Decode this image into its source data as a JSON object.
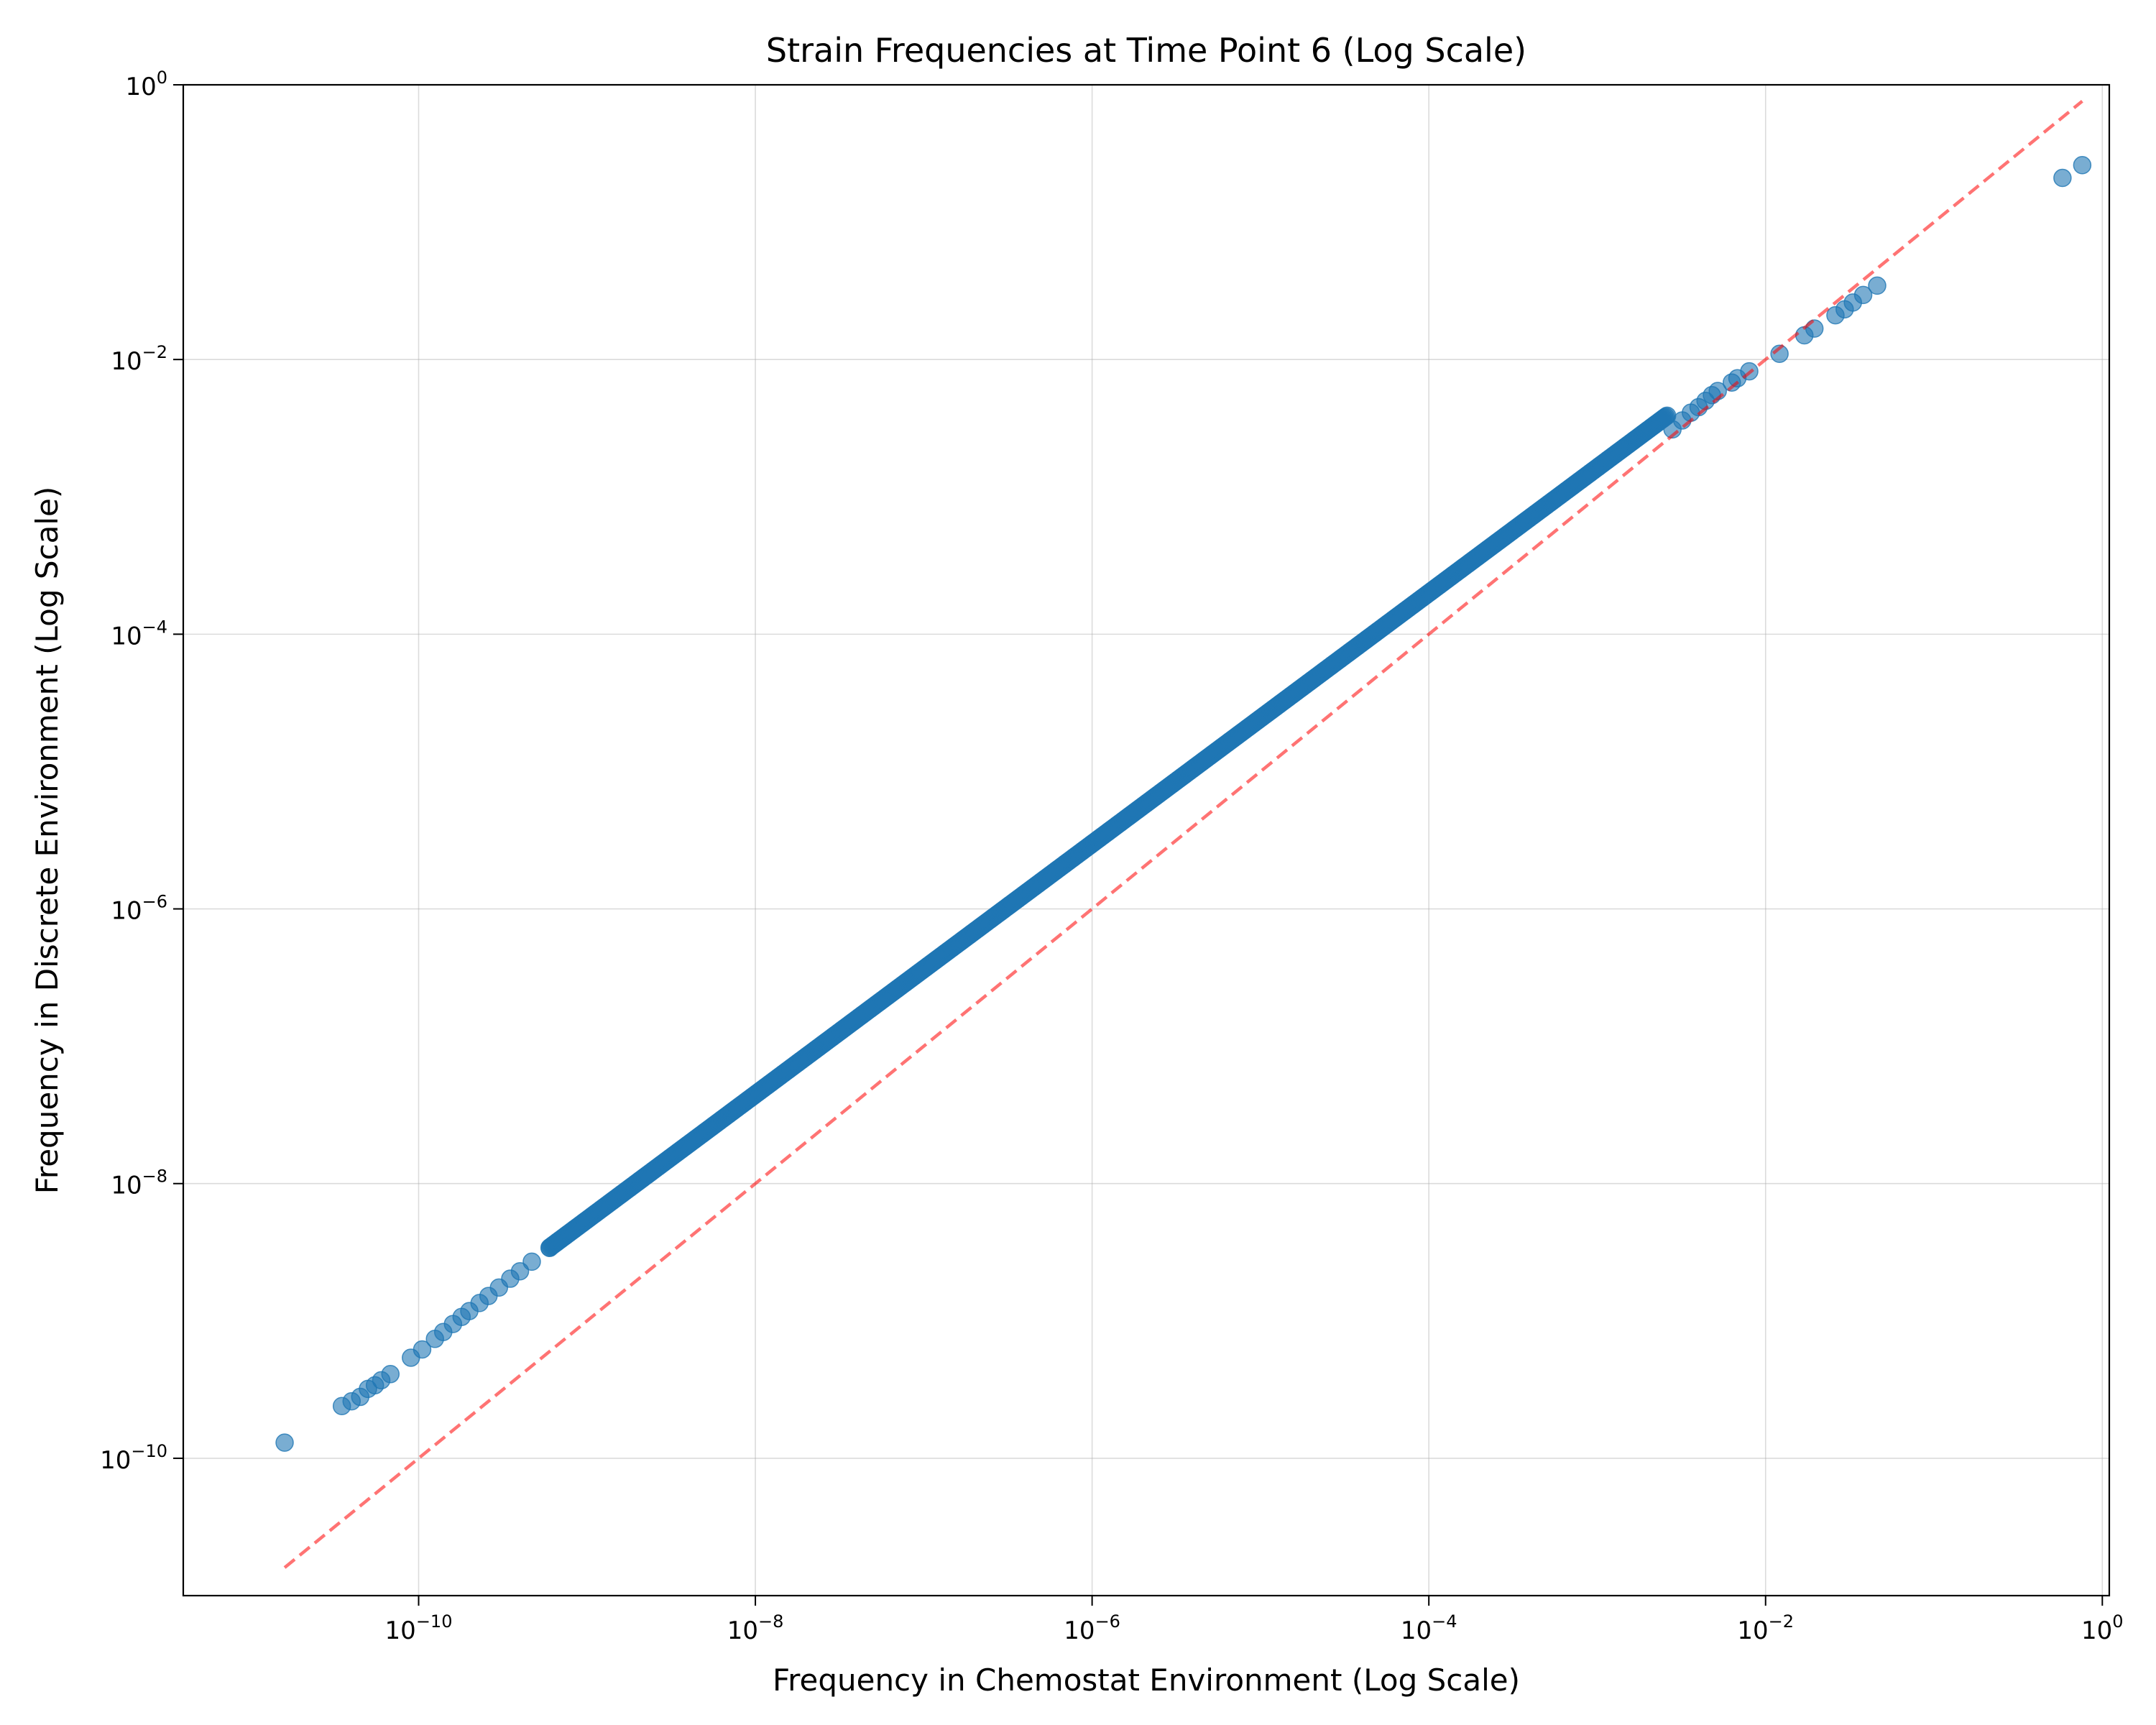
{
  "chart_data": {
    "type": "scatter",
    "title": "Strain Frequencies at Time Point 6 (Log Scale)",
    "xlabel": "Frequency in Chemostat Environment (Log Scale)",
    "ylabel": "Frequency in Discrete Environment (Log Scale)",
    "xscale": "log",
    "yscale": "log",
    "xlim": [
      4e-12,
      1.1
    ],
    "ylim": [
      1e-11,
      1.0
    ],
    "x_ticks": [
      {
        "value": 1e-10,
        "base": "10",
        "exp": "−10"
      },
      {
        "value": 1e-08,
        "base": "10",
        "exp": "−8"
      },
      {
        "value": 1e-06,
        "base": "10",
        "exp": "−6"
      },
      {
        "value": 0.0001,
        "base": "10",
        "exp": "−4"
      },
      {
        "value": 0.01,
        "base": "10",
        "exp": "−2"
      },
      {
        "value": 1,
        "base": "10",
        "exp": "0"
      }
    ],
    "y_ticks": [
      {
        "value": 1e-10,
        "base": "10",
        "exp": "−10"
      },
      {
        "value": 1e-08,
        "base": "10",
        "exp": "−8"
      },
      {
        "value": 1e-06,
        "base": "10",
        "exp": "−6"
      },
      {
        "value": 0.0001,
        "base": "10",
        "exp": "−4"
      },
      {
        "value": 0.01,
        "base": "10",
        "exp": "−2"
      },
      {
        "value": 1,
        "base": "10",
        "exp": "0"
      }
    ],
    "grid": true,
    "series": [
      {
        "type": "scatter",
        "color": "#1f77b4",
        "opacity": 0.6,
        "points": [
          [
            1.6e-11,
            1.3e-10
          ],
          [
            3.5e-11,
            2.4e-10
          ],
          [
            4e-11,
            2.6e-10
          ],
          [
            4.5e-11,
            2.8e-10
          ],
          [
            5e-11,
            3.2e-10
          ],
          [
            5.5e-11,
            3.4e-10
          ],
          [
            6e-11,
            3.7e-10
          ],
          [
            6.8e-11,
            4.1e-10
          ],
          [
            9e-11,
            5.4e-10
          ],
          [
            1.05e-10,
            6.2e-10
          ],
          [
            1.25e-10,
            7.4e-10
          ],
          [
            1.4e-10,
            8.3e-10
          ],
          [
            1.6e-10,
            9.5e-10
          ],
          [
            1.8e-10,
            1.07e-09
          ],
          [
            2e-10,
            1.18e-09
          ],
          [
            2.3e-10,
            1.35e-09
          ],
          [
            2.6e-10,
            1.52e-09
          ],
          [
            3e-10,
            1.75e-09
          ],
          [
            3.5e-10,
            2.03e-09
          ],
          [
            4e-10,
            2.3e-09
          ],
          [
            4.7e-10,
            2.7e-09
          ],
          [
            6e-10,
            3.4e-09
          ]
        ]
      },
      {
        "type": "dense-band",
        "color": "#1f77b4",
        "opacity": 0.6,
        "x_start": 6e-10,
        "x_end": 0.0026,
        "ratio": 5.7,
        "ratio_end": 1.5
      },
      {
        "type": "scatter",
        "color": "#1f77b4",
        "opacity": 0.6,
        "points": [
          [
            0.0028,
            0.0031
          ],
          [
            0.0032,
            0.0036
          ],
          [
            0.0036,
            0.0041
          ],
          [
            0.004,
            0.0045
          ],
          [
            0.0044,
            0.005
          ],
          [
            0.0048,
            0.0055
          ],
          [
            0.0052,
            0.0059
          ],
          [
            0.0063,
            0.0068
          ],
          [
            0.0068,
            0.0073
          ],
          [
            0.008,
            0.0082
          ],
          [
            0.0121,
            0.011
          ],
          [
            0.017,
            0.015
          ],
          [
            0.0195,
            0.0168
          ],
          [
            0.026,
            0.021
          ],
          [
            0.0295,
            0.0232
          ],
          [
            0.033,
            0.026
          ],
          [
            0.038,
            0.0295
          ],
          [
            0.046,
            0.0345
          ],
          [
            0.58,
            0.21
          ],
          [
            0.76,
            0.26
          ]
        ]
      },
      {
        "type": "line",
        "name": "y = x",
        "color": "#ff0000",
        "opacity": 0.55,
        "dashed": true,
        "x": [
          1.6e-11,
          0.76
        ],
        "y": [
          1.6e-11,
          0.76
        ]
      }
    ]
  }
}
